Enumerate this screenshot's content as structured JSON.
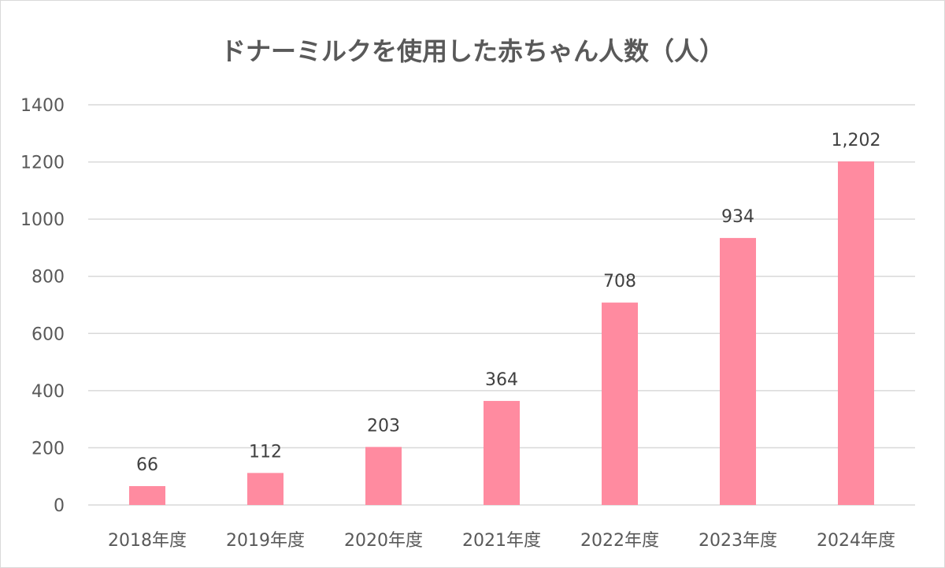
{
  "chart_data": {
    "type": "bar",
    "title": "ドナーミルクを使用した赤ちゃん人数（人）",
    "categories": [
      "2018年度",
      "2019年度",
      "2020年度",
      "2021年度",
      "2022年度",
      "2023年度",
      "2024年度"
    ],
    "values": [
      66,
      112,
      203,
      364,
      708,
      934,
      1202
    ],
    "data_labels": [
      "66",
      "112",
      "203",
      "364",
      "708",
      "934",
      "1,202"
    ],
    "yticks": [
      0,
      200,
      400,
      600,
      800,
      1000,
      1200,
      1400
    ],
    "ylim": [
      0,
      1400
    ],
    "xlabel": "",
    "ylabel": "",
    "grid": true,
    "bar_color": "#ff8ba0",
    "grid_color": "#d9d9d9",
    "text_color": "#595959"
  }
}
